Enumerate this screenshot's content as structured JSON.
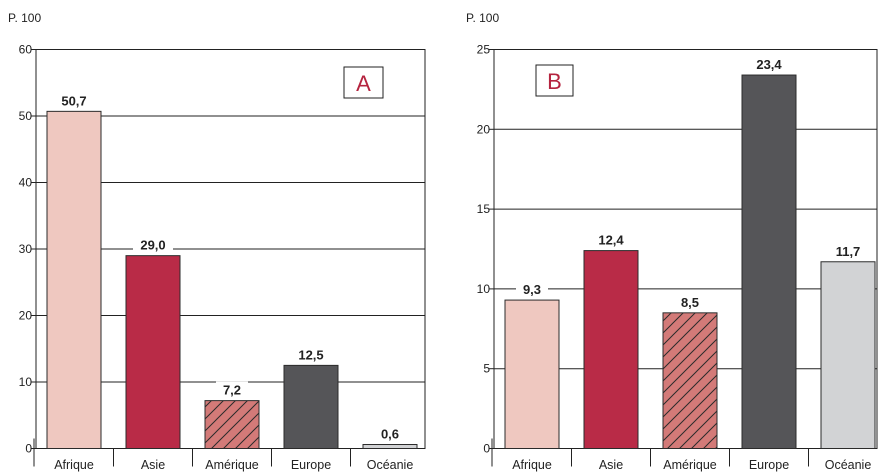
{
  "chart_data": [
    {
      "type": "bar",
      "panel_label": "A",
      "unit_label": "P. 100",
      "categories": [
        "Afrique",
        "Asie",
        "Amérique",
        "Europe",
        "Océanie"
      ],
      "values": [
        50.7,
        29.0,
        7.2,
        12.5,
        0.6
      ],
      "value_labels": [
        "50,7",
        "29,0",
        "7,2",
        "12,5",
        "0,6"
      ],
      "ylim": [
        0,
        60
      ],
      "yticks": [
        "0",
        "10",
        "20",
        "30",
        "40",
        "50",
        "60"
      ],
      "grid": true
    },
    {
      "type": "bar",
      "panel_label": "B",
      "unit_label": "P. 100",
      "categories": [
        "Afrique",
        "Asie",
        "Amérique",
        "Europe",
        "Océanie"
      ],
      "values": [
        9.3,
        12.4,
        8.5,
        23.4,
        11.7
      ],
      "value_labels": [
        "9,3",
        "12,4",
        "8,5",
        "23,4",
        "11,7"
      ],
      "ylim": [
        0,
        25
      ],
      "yticks": [
        "0",
        "5",
        "10",
        "15",
        "20",
        "25"
      ],
      "grid": true
    }
  ],
  "colors": {
    "Afrique": "#efc8c0",
    "Asie": "#b92b47",
    "Amérique": "#d37a78",
    "Europe": "#555558",
    "Océanie": "#d2d3d5"
  },
  "hatched_category": "Amérique",
  "panel_letter_color": "#b5243f"
}
